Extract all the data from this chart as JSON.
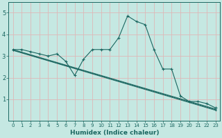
{
  "xlabel": "Humidex (Indice chaleur)",
  "xlim": [
    -0.5,
    23.5
  ],
  "ylim": [
    0,
    5.5
  ],
  "yticks": [
    1,
    2,
    3,
    4,
    5
  ],
  "xticks": [
    0,
    1,
    2,
    3,
    4,
    5,
    6,
    7,
    8,
    9,
    10,
    11,
    12,
    13,
    14,
    15,
    16,
    17,
    18,
    19,
    20,
    21,
    22,
    23
  ],
  "bg_color": "#c5e8e2",
  "grid_color": "#ddb8b8",
  "line_color": "#1a6660",
  "main_curve_x": [
    0,
    1,
    2,
    3,
    4,
    5,
    6,
    7,
    8,
    9,
    10,
    11,
    12,
    13,
    14,
    15,
    16,
    17,
    18,
    19,
    20,
    21,
    22,
    23
  ],
  "main_curve_y": [
    3.3,
    3.3,
    3.2,
    3.1,
    3.0,
    3.1,
    2.75,
    2.1,
    2.85,
    3.3,
    3.3,
    3.3,
    3.85,
    4.85,
    4.6,
    4.45,
    3.3,
    2.4,
    2.4,
    1.15,
    0.9,
    0.9,
    0.8,
    0.6
  ],
  "regression_lines": [
    {
      "x": [
        0,
        23
      ],
      "y": [
        3.3,
        0.55
      ]
    },
    {
      "x": [
        0,
        23
      ],
      "y": [
        3.28,
        0.52
      ]
    },
    {
      "x": [
        0,
        23
      ],
      "y": [
        3.26,
        0.49
      ]
    }
  ]
}
